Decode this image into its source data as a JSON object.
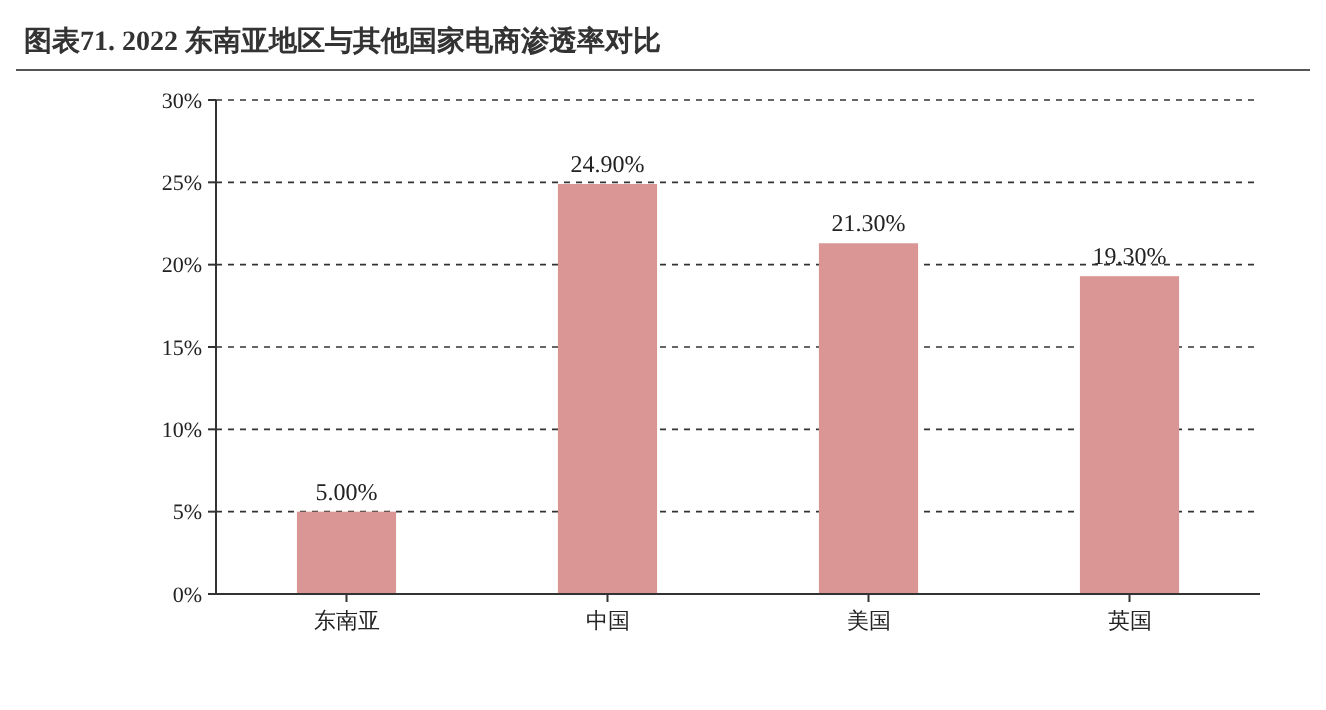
{
  "chart_data": {
    "type": "bar",
    "title": "图表71. 2022 东南亚地区与其他国家电商渗透率对比",
    "categories": [
      "东南亚",
      "中国",
      "美国",
      "英国"
    ],
    "values": [
      5,
      24.9,
      21.3,
      19.3
    ],
    "value_labels": [
      "5.00%",
      "24.90%",
      "21.30%",
      "19.30%"
    ],
    "color": "#d99694",
    "ylim": [
      0,
      30
    ],
    "yticks": [
      {
        "value": 0,
        "label": "0%"
      },
      {
        "value": 5,
        "label": "5%"
      },
      {
        "value": 10,
        "label": "10%"
      },
      {
        "value": 15,
        "label": "15%"
      },
      {
        "value": 20,
        "label": "20%"
      },
      {
        "value": 25,
        "label": "25%"
      },
      {
        "value": 30,
        "label": "30%"
      }
    ],
    "grid": "y"
  }
}
